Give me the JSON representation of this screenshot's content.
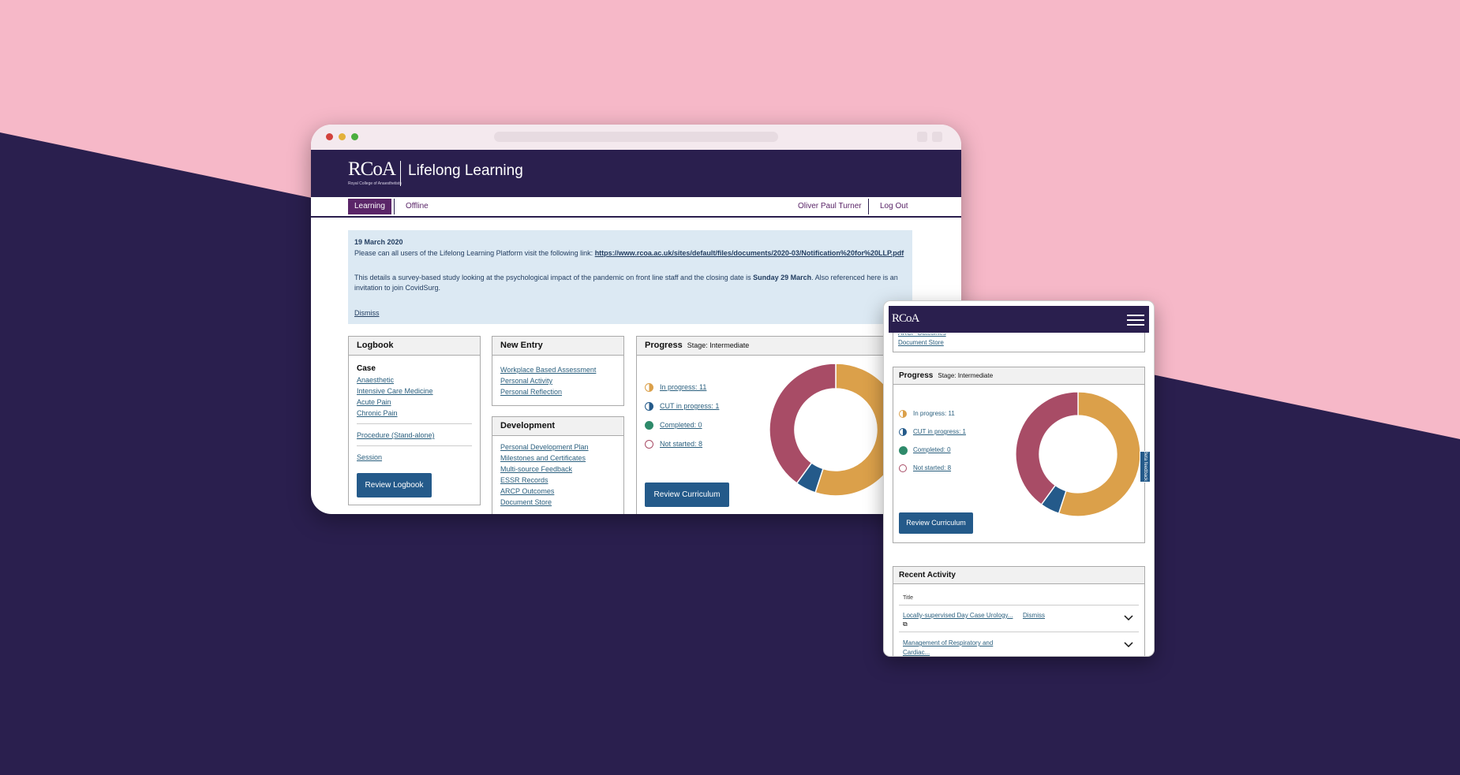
{
  "desktop": {
    "header": {
      "logo": "RCoA",
      "logo_subtitle": "Royal College of Anaesthetists",
      "title": "Lifelong Learning"
    },
    "nav": {
      "learning": "Learning",
      "offline": "Offline",
      "user": "Oliver Paul Turner",
      "logout": "Log Out"
    },
    "notice": {
      "date": "19 March 2020",
      "line1": "Please can all users of the Lifelong Learning Platform visit the following link:",
      "link": "https://www.rcoa.ac.uk/sites/default/files/documents/2020-03/Notification%20for%20LLP.pdf",
      "line2_a": "This details a survey-based study looking at the psychological impact of the pandemic on front line staff and the closing date is",
      "line2_bold": "Sunday 29 March",
      "line2_b": ". Also referenced here is an invitation to join CovidSurg.",
      "dismiss": "Dismiss"
    },
    "logbook": {
      "title": "Logbook",
      "case_label": "Case",
      "cases": [
        "Anaesthetic",
        "Intensive Care Medicine",
        "Acute Pain",
        "Chronic Pain"
      ],
      "procedure": "Procedure (Stand-alone)",
      "session": "Session",
      "button": "Review Logbook"
    },
    "new_entry": {
      "title": "New Entry",
      "items": [
        "Workplace Based Assessment",
        "Personal Activity",
        "Personal Reflection"
      ]
    },
    "development": {
      "title": "Development",
      "items": [
        "Personal Development Plan",
        "Milestones and Certificates",
        "Multi-source Feedback",
        "ESSR Records",
        "ARCP Outcomes",
        "Document Store"
      ]
    },
    "progress": {
      "title": "Progress",
      "stage": "Stage: Intermediate",
      "legend": [
        "In progress: 11",
        "CUT in progress: 1",
        "Completed: 0",
        "Not started: 8"
      ],
      "button": "Review Curriculum"
    }
  },
  "tablet": {
    "logo": "RCoA",
    "dev_partial": "ARCP Outcomes",
    "dev_store": "Document Store",
    "progress": {
      "title": "Progress",
      "stage": "Stage: Intermediate",
      "legend": [
        "In progress: 11",
        "CUT in progress: 1",
        "Completed: 0",
        "Not started: 8"
      ],
      "button": "Review Curriculum"
    },
    "feedback_tab": "Beta feedback",
    "recent": {
      "title": "Recent Activity",
      "col_title": "Title",
      "rows": [
        "Locally-supervised Day Case Urology...",
        "Management of Respiratory and Cardiac..."
      ],
      "dismiss": "Dismiss"
    }
  },
  "chart_data": {
    "type": "pie",
    "categories": [
      "In progress",
      "CUT in progress",
      "Completed",
      "Not started"
    ],
    "values": [
      11,
      1,
      0,
      8
    ],
    "colors": [
      "#dba04a",
      "#245a8a",
      "#2e8a6a",
      "#a84c66"
    ]
  },
  "colors": {
    "navy": "#2a1f4e",
    "purple": "#5a2568",
    "button": "#245a8a",
    "pink": "#f6b8c8"
  }
}
